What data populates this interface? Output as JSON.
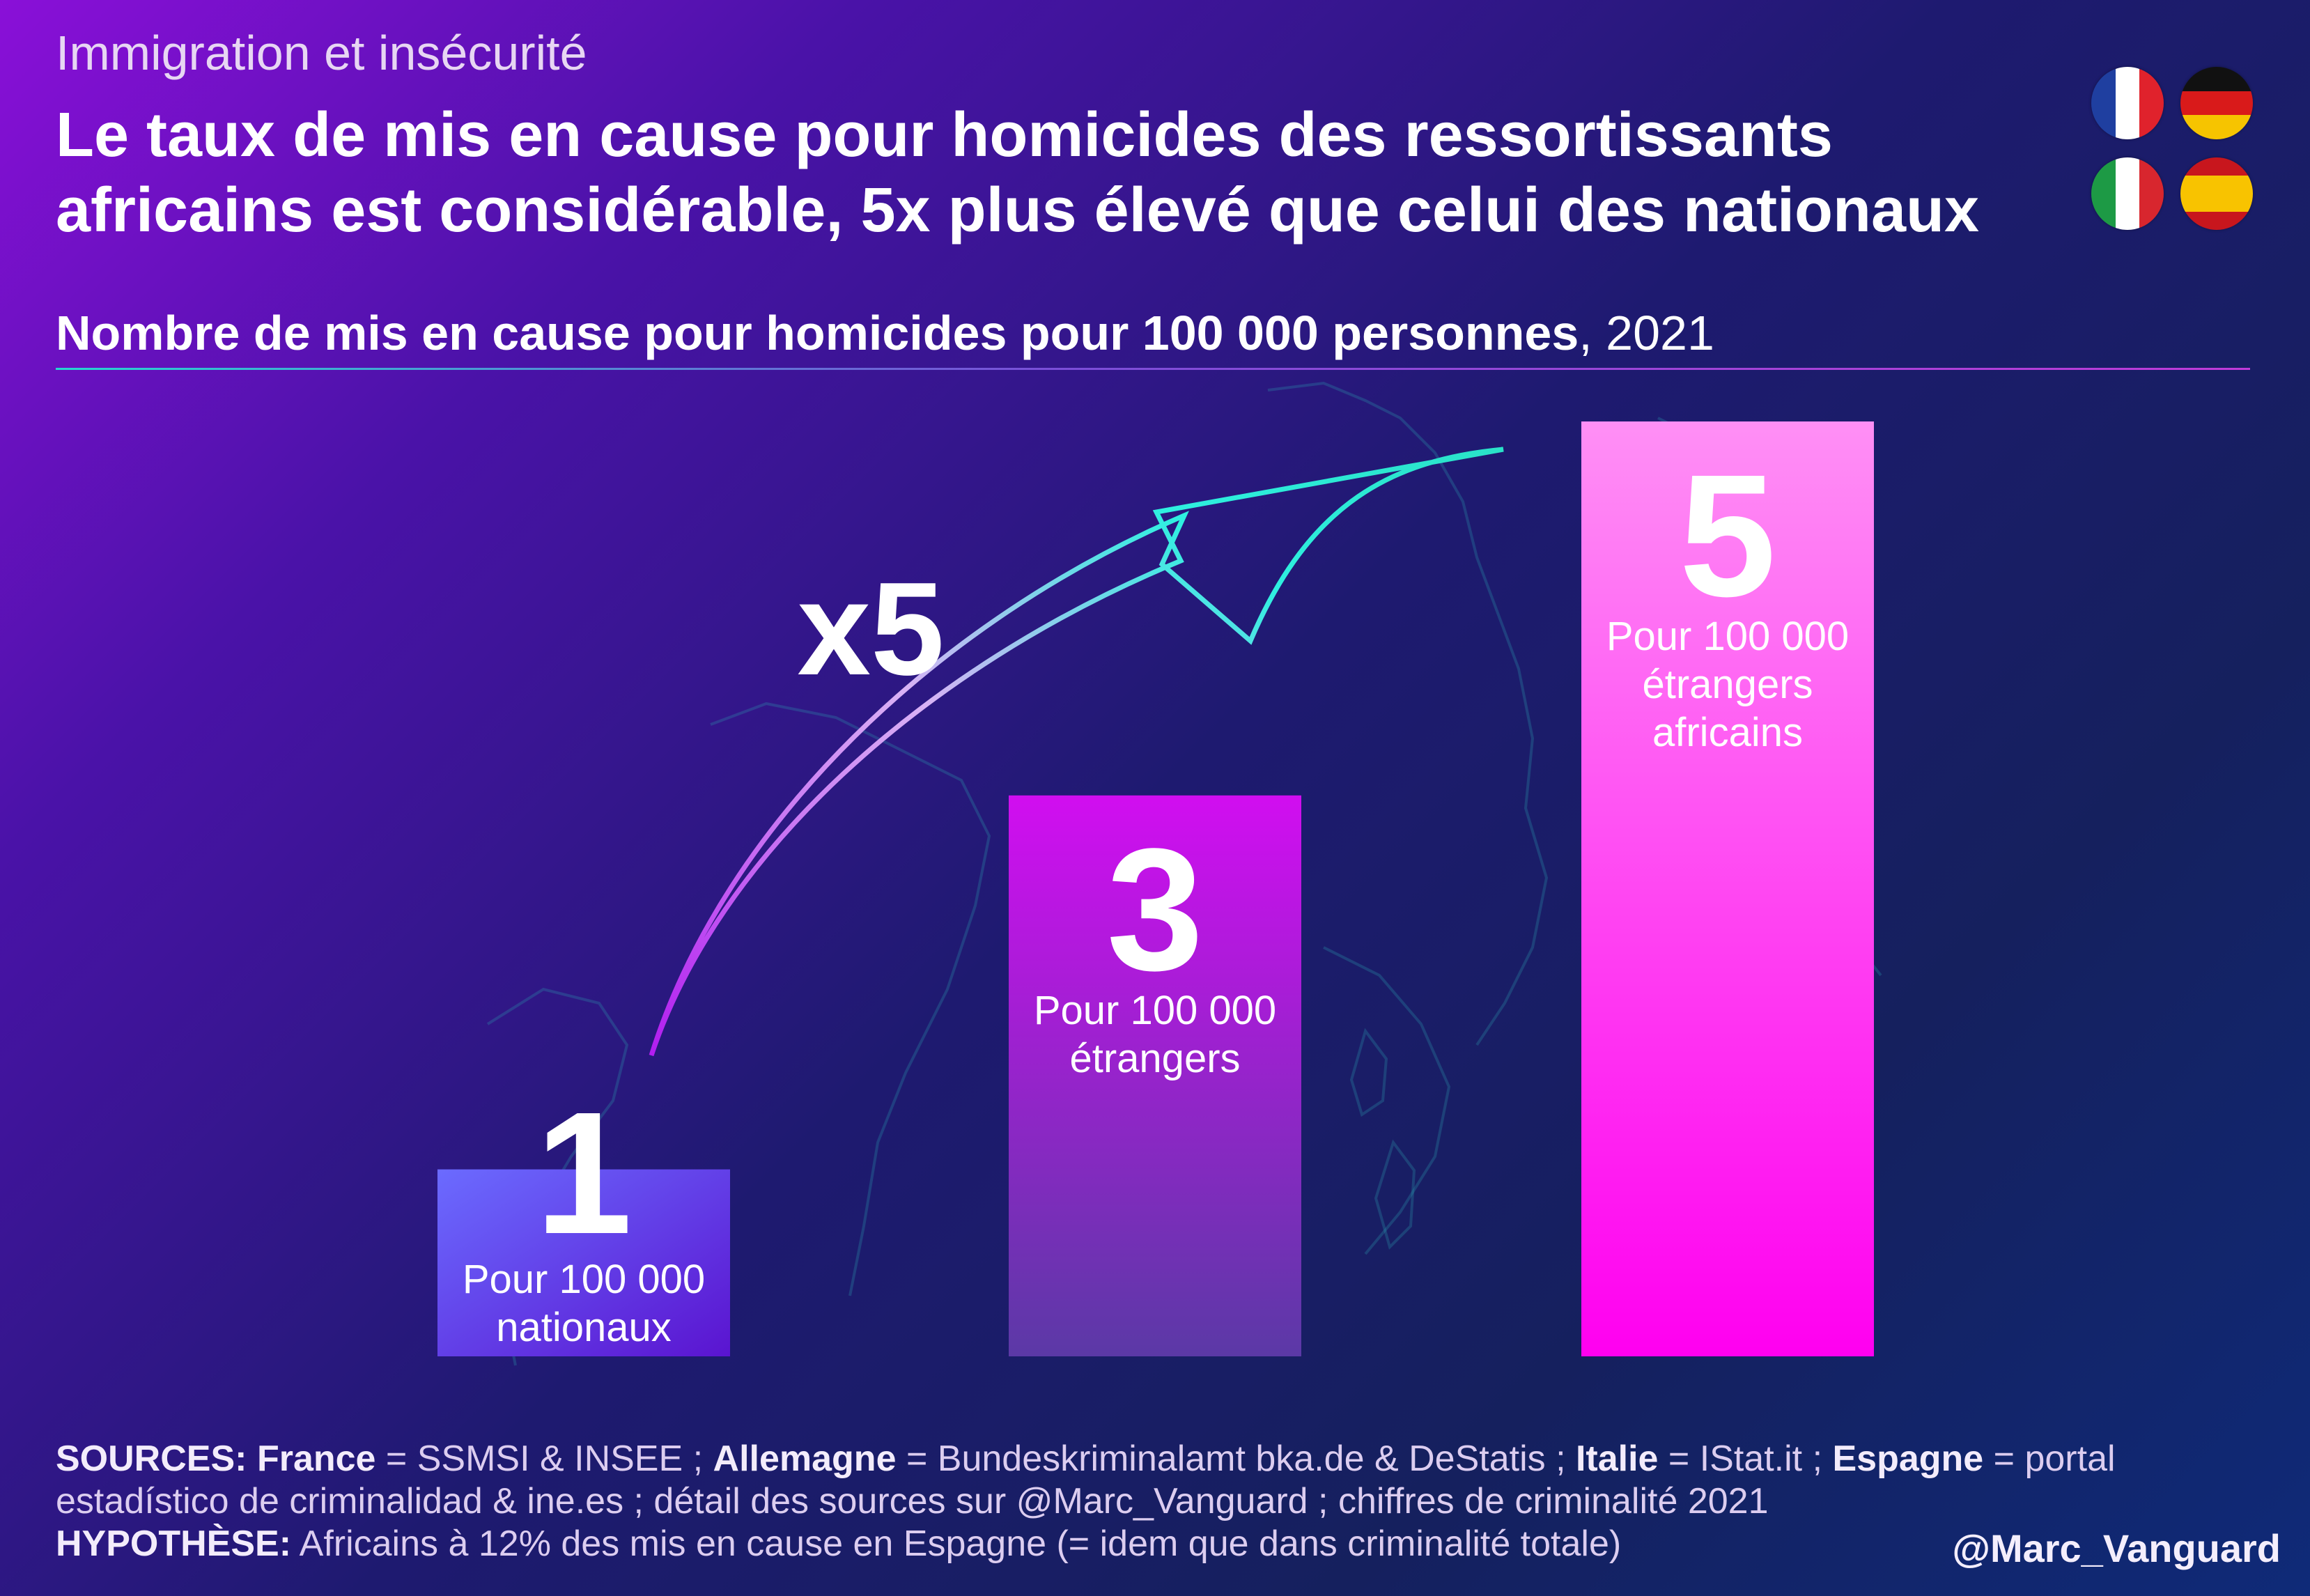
{
  "header": {
    "supertitle": "Immigration et insécurité",
    "title": "Le taux de mis en cause pour homicides des ressortissants africains est considérable, 5x plus élevé que celui des nationaux",
    "subtitle_bold": "Nombre de mis en cause pour homicides pour 100 000 personnes",
    "subtitle_rest": ", 2021"
  },
  "flags": [
    {
      "name": "France",
      "icon": "france-flag-icon",
      "colors": [
        "#1f3fa0",
        "#ffffff",
        "#e0222c"
      ]
    },
    {
      "name": "Allemagne",
      "icon": "germany-flag-icon",
      "colors": [
        "#111111",
        "#d91a1a",
        "#f6c400"
      ]
    },
    {
      "name": "Italie",
      "icon": "italy-flag-icon",
      "colors": [
        "#1d9a45",
        "#ffffff",
        "#d8262e"
      ]
    },
    {
      "name": "Espagne",
      "icon": "spain-flag-icon",
      "colors": [
        "#c8161d",
        "#f8c300",
        "#c8161d"
      ]
    }
  ],
  "chart_data": {
    "type": "bar",
    "title": "Nombre de mis en cause pour homicides pour 100 000 personnes, 2021",
    "categories": [
      "Pour 100 000 nationaux",
      "Pour 100 000 étrangers",
      "Pour 100 000 étrangers africains"
    ],
    "category_lines": [
      [
        "Pour 100 000",
        "nationaux"
      ],
      [
        "Pour 100 000",
        "étrangers"
      ],
      [
        "Pour 100 000",
        "étrangers",
        "africains"
      ]
    ],
    "values": [
      1,
      3,
      5
    ],
    "value_labels": [
      "1",
      "3",
      "5"
    ],
    "ylim": [
      0,
      5
    ],
    "grid": false,
    "bar_colors": [
      [
        "#6b6bff",
        "#5a14d0"
      ],
      [
        "#d10ef0",
        "#5b39a6"
      ],
      [
        "#ff8ff5",
        "#ff00f0"
      ]
    ],
    "annotation": "x5"
  },
  "footer": {
    "sources_label": "SOURCES:",
    "france_label": "France",
    "france_text": " = SSMSI & INSEE ; ",
    "germany_label": "Allemagne",
    "germany_text": " = Bundeskriminalamt bka.de & DeStatis ; ",
    "italy_label": "Italie",
    "italy_text": " = IStat.it ; ",
    "spain_label": "Espagne",
    "spain_text": " = portal estadístico de criminalidad & ine.es ; détail des sources sur @Marc_Vanguard ; chiffres de criminalité 2021",
    "hypothesis_label": "HYPOTHÈSE:",
    "hypothesis_text": " Africains à 12% des mis en cause en Espagne (= idem que dans criminalité totale)",
    "handle": "@Marc_Vanguard"
  }
}
